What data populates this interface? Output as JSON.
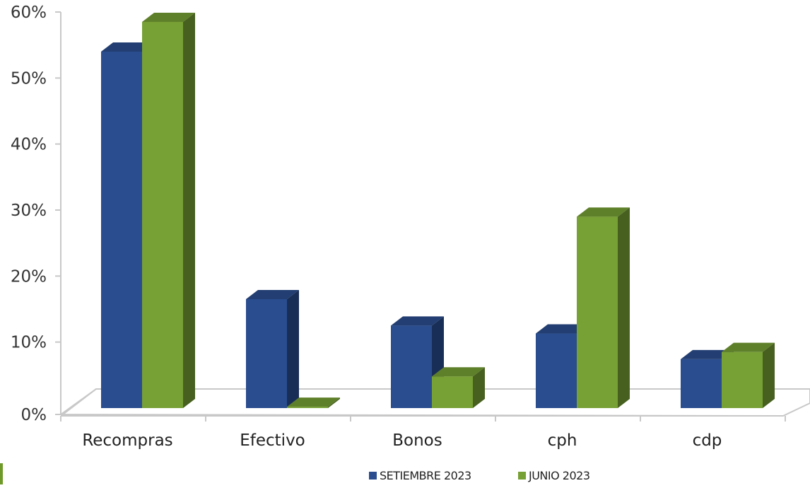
{
  "chart_data": {
    "type": "bar",
    "title": "",
    "xlabel": "",
    "ylabel": "",
    "categories": [
      "Recompras",
      "Efectivo",
      "Bonos",
      "cph",
      "cdp"
    ],
    "series": [
      {
        "name": "SETIEMBRE 2023",
        "color": "#2a4d8f",
        "values": [
          54,
          16.5,
          12.5,
          11.3,
          7.4
        ]
      },
      {
        "name": "JUNIO 2023",
        "color": "#77a035",
        "values": [
          58.5,
          0.2,
          4.8,
          29,
          8.5
        ]
      }
    ],
    "ylim": [
      0,
      60
    ],
    "yticks": [
      0,
      10,
      20,
      30,
      40,
      50,
      60
    ],
    "ytick_labels": [
      "0%",
      "10%",
      "20%",
      "30%",
      "40%",
      "50%",
      "60%"
    ],
    "grid": false,
    "legend_position": "bottom",
    "three_d": true
  }
}
